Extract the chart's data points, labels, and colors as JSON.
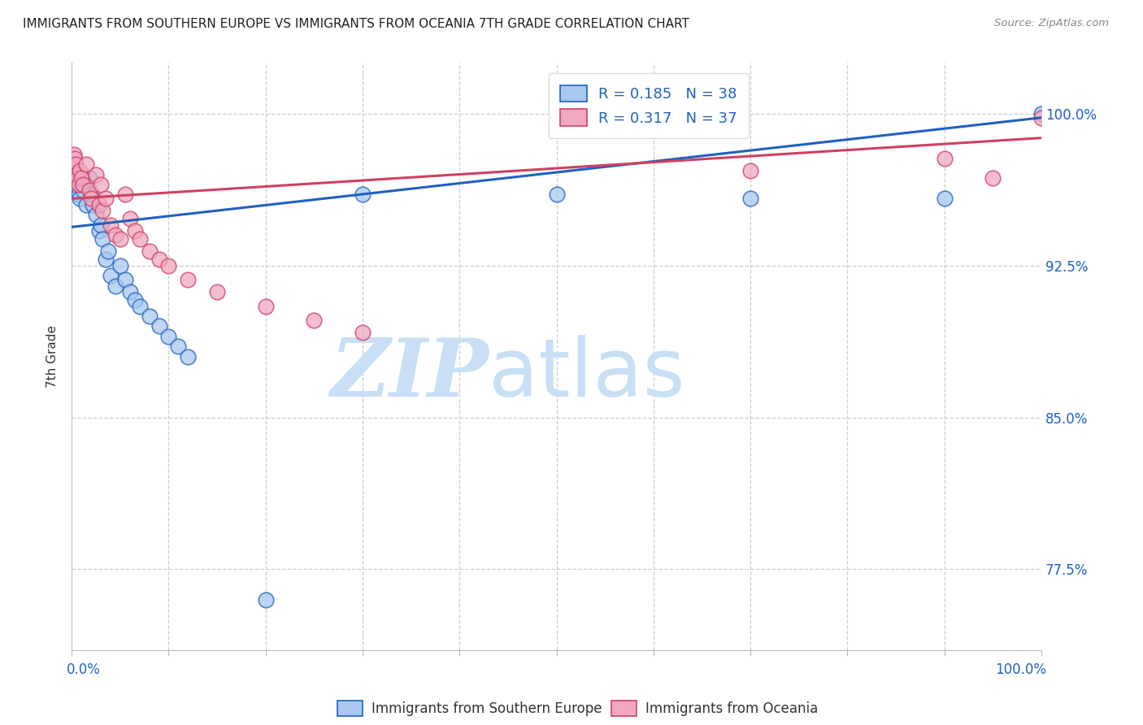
{
  "title": "IMMIGRANTS FROM SOUTHERN EUROPE VS IMMIGRANTS FROM OCEANIA 7TH GRADE CORRELATION CHART",
  "source": "Source: ZipAtlas.com",
  "ylabel": "7th Grade",
  "ytick_labels": [
    "77.5%",
    "85.0%",
    "92.5%",
    "100.0%"
  ],
  "ytick_values": [
    0.775,
    0.85,
    0.925,
    1.0
  ],
  "xlim": [
    0.0,
    1.0
  ],
  "ylim": [
    0.735,
    1.025
  ],
  "legend_label_blue": "Immigrants from Southern Europe",
  "legend_label_pink": "Immigrants from Oceania",
  "R_blue": 0.185,
  "N_blue": 38,
  "R_pink": 0.317,
  "N_pink": 37,
  "color_blue": "#a8c8f0",
  "color_pink": "#f0a8c0",
  "color_trendline_blue": "#2060c0",
  "color_trendline_pink": "#d04060",
  "watermark_zip": "ZIP",
  "watermark_atlas": "atlas",
  "watermark_color_zip": "#c8dff5",
  "watermark_color_atlas": "#c8dff5",
  "title_fontsize": 11,
  "blue_scatter_x": [
    0.001,
    0.002,
    0.003,
    0.004,
    0.005,
    0.006,
    0.007,
    0.008,
    0.01,
    0.012,
    0.015,
    0.018,
    0.02,
    0.022,
    0.025,
    0.028,
    0.03,
    0.032,
    0.035,
    0.038,
    0.04,
    0.045,
    0.05,
    0.055,
    0.06,
    0.065,
    0.07,
    0.08,
    0.09,
    0.1,
    0.11,
    0.12,
    0.2,
    0.3,
    0.5,
    0.7,
    0.9,
    1.0
  ],
  "blue_scatter_y": [
    0.975,
    0.97,
    0.968,
    0.966,
    0.972,
    0.964,
    0.96,
    0.958,
    0.965,
    0.962,
    0.955,
    0.968,
    0.96,
    0.955,
    0.95,
    0.942,
    0.945,
    0.938,
    0.928,
    0.932,
    0.92,
    0.915,
    0.925,
    0.918,
    0.912,
    0.908,
    0.905,
    0.9,
    0.895,
    0.89,
    0.885,
    0.88,
    0.76,
    0.96,
    0.96,
    0.958,
    0.958,
    1.0
  ],
  "pink_scatter_x": [
    0.001,
    0.002,
    0.003,
    0.004,
    0.005,
    0.006,
    0.007,
    0.008,
    0.01,
    0.012,
    0.015,
    0.018,
    0.02,
    0.025,
    0.028,
    0.03,
    0.032,
    0.035,
    0.04,
    0.045,
    0.05,
    0.055,
    0.06,
    0.065,
    0.07,
    0.08,
    0.09,
    0.1,
    0.12,
    0.15,
    0.2,
    0.25,
    0.3,
    0.7,
    0.9,
    0.95,
    1.0
  ],
  "pink_scatter_y": [
    0.975,
    0.98,
    0.978,
    0.975,
    0.97,
    0.968,
    0.965,
    0.972,
    0.968,
    0.965,
    0.975,
    0.962,
    0.958,
    0.97,
    0.955,
    0.965,
    0.952,
    0.958,
    0.945,
    0.94,
    0.938,
    0.96,
    0.948,
    0.942,
    0.938,
    0.932,
    0.928,
    0.925,
    0.918,
    0.912,
    0.905,
    0.898,
    0.892,
    0.972,
    0.978,
    0.968,
    0.998
  ],
  "trendline_blue_y0": 0.944,
  "trendline_blue_y1": 0.998,
  "trendline_pink_y0": 0.958,
  "trendline_pink_y1": 0.988
}
